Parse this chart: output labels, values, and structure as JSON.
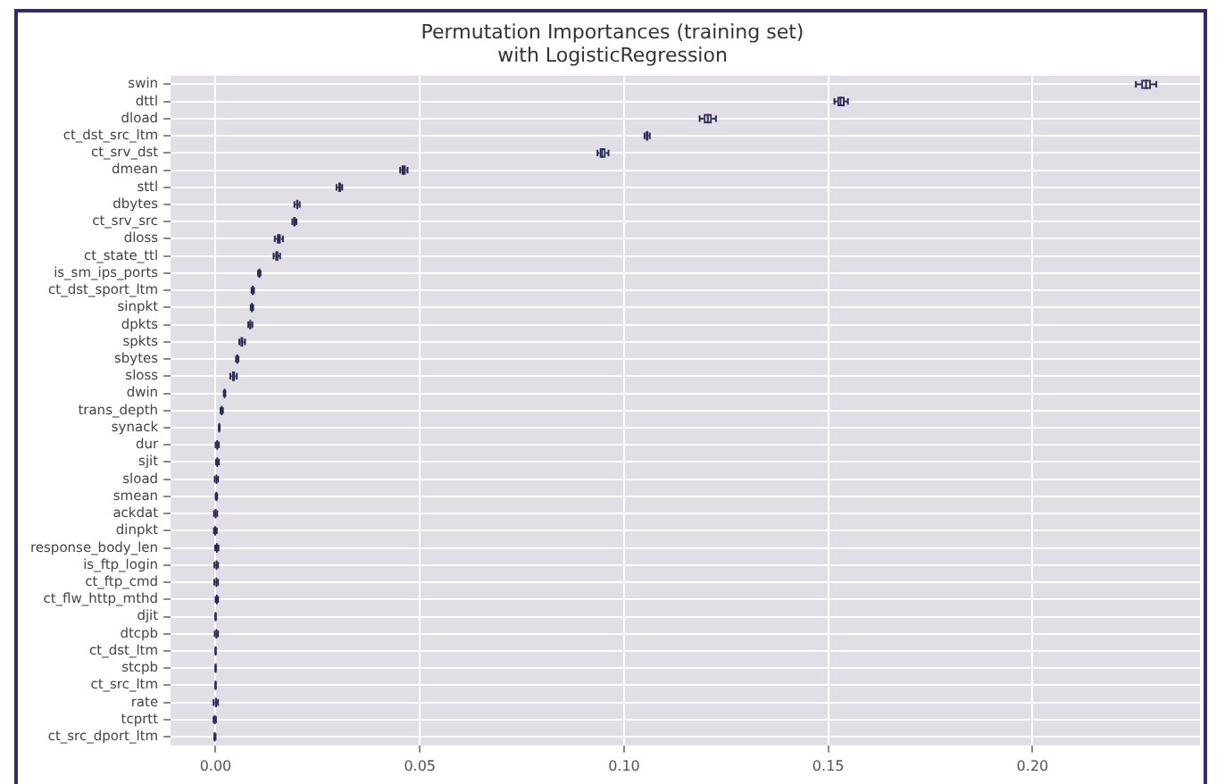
{
  "chart_data": {
    "type": "box",
    "orientation": "horizontal",
    "title": "Permutation Importances (training set)\nwith LogisticRegression",
    "categories": [
      "swin",
      "dttl",
      "dload",
      "ct_dst_src_ltm",
      "ct_srv_dst",
      "dmean",
      "sttl",
      "dbytes",
      "ct_srv_src",
      "dloss",
      "ct_state_ttl",
      "is_sm_ips_ports",
      "ct_dst_sport_ltm",
      "sinpkt",
      "dpkts",
      "spkts",
      "sbytes",
      "sloss",
      "dwin",
      "trans_depth",
      "synack",
      "dur",
      "sjit",
      "sload",
      "smean",
      "ackdat",
      "dinpkt",
      "response_body_len",
      "is_ftp_login",
      "ct_ftp_cmd",
      "ct_flw_http_mthd",
      "djit",
      "dtcpb",
      "ct_dst_ltm",
      "stcpb",
      "ct_src_ltm",
      "rate",
      "tcprtt",
      "ct_src_dport_ltm"
    ],
    "color": "#2b2b5a",
    "boxes": [
      {
        "low": 0.2253,
        "q1": 0.2266,
        "median": 0.2278,
        "q3": 0.229,
        "high": 0.2303
      },
      {
        "low": 0.1515,
        "q1": 0.1522,
        "median": 0.153,
        "q3": 0.154,
        "high": 0.1548
      },
      {
        "low": 0.1185,
        "q1": 0.1195,
        "median": 0.1205,
        "q3": 0.1215,
        "high": 0.1225
      },
      {
        "low": 0.105,
        "q1": 0.1053,
        "median": 0.1057,
        "q3": 0.106,
        "high": 0.1063
      },
      {
        "low": 0.0935,
        "q1": 0.094,
        "median": 0.0946,
        "q3": 0.0955,
        "high": 0.0962
      },
      {
        "low": 0.0452,
        "q1": 0.0455,
        "median": 0.046,
        "q3": 0.0466,
        "high": 0.047
      },
      {
        "low": 0.0296,
        "q1": 0.03,
        "median": 0.0304,
        "q3": 0.0307,
        "high": 0.031
      },
      {
        "low": 0.0193,
        "q1": 0.0197,
        "median": 0.02,
        "q3": 0.0203,
        "high": 0.0206
      },
      {
        "low": 0.0188,
        "q1": 0.019,
        "median": 0.0193,
        "q3": 0.0196,
        "high": 0.0198
      },
      {
        "low": 0.0145,
        "q1": 0.015,
        "median": 0.0155,
        "q3": 0.016,
        "high": 0.0165
      },
      {
        "low": 0.0142,
        "q1": 0.0146,
        "median": 0.015,
        "q3": 0.0154,
        "high": 0.0158
      },
      {
        "low": 0.0104,
        "q1": 0.0106,
        "median": 0.0107,
        "q3": 0.0108,
        "high": 0.011
      },
      {
        "low": 0.0088,
        "q1": 0.009,
        "median": 0.0091,
        "q3": 0.0092,
        "high": 0.0094
      },
      {
        "low": 0.0086,
        "q1": 0.0088,
        "median": 0.0089,
        "q3": 0.009,
        "high": 0.0092
      },
      {
        "low": 0.008,
        "q1": 0.0083,
        "median": 0.0085,
        "q3": 0.0087,
        "high": 0.009
      },
      {
        "low": 0.0058,
        "q1": 0.0061,
        "median": 0.0064,
        "q3": 0.0068,
        "high": 0.0072
      },
      {
        "low": 0.005,
        "q1": 0.0052,
        "median": 0.0053,
        "q3": 0.0054,
        "high": 0.0056
      },
      {
        "low": 0.0036,
        "q1": 0.004,
        "median": 0.0044,
        "q3": 0.0048,
        "high": 0.0052
      },
      {
        "low": 0.002,
        "q1": 0.0021,
        "median": 0.0022,
        "q3": 0.0023,
        "high": 0.0024
      },
      {
        "low": 0.0012,
        "q1": 0.0014,
        "median": 0.0015,
        "q3": 0.0016,
        "high": 0.0018
      },
      {
        "low": 0.0008,
        "q1": 0.0009,
        "median": 0.0009,
        "q3": 0.001,
        "high": 0.001
      },
      {
        "low": 0.0,
        "q1": 0.0002,
        "median": 0.0004,
        "q3": 0.0006,
        "high": 0.0008
      },
      {
        "low": 0.0001,
        "q1": 0.0003,
        "median": 0.0004,
        "q3": 0.0006,
        "high": 0.0008
      },
      {
        "low": -0.0002,
        "q1": 0.0,
        "median": 0.0002,
        "q3": 0.0004,
        "high": 0.0006
      },
      {
        "low": 0.0,
        "q1": 0.0001,
        "median": 0.0002,
        "q3": 0.0003,
        "high": 0.0004
      },
      {
        "low": -0.0004,
        "q1": -0.0002,
        "median": 0.0,
        "q3": 0.0002,
        "high": 0.0004
      },
      {
        "low": -0.0004,
        "q1": -0.0002,
        "median": -0.0001,
        "q3": 0.0001,
        "high": 0.0003
      },
      {
        "low": -0.0001,
        "q1": 0.0001,
        "median": 0.0003,
        "q3": 0.0005,
        "high": 0.0007
      },
      {
        "low": -0.0003,
        "q1": 0.0,
        "median": 0.0002,
        "q3": 0.0004,
        "high": 0.0006
      },
      {
        "low": -0.0003,
        "q1": 0.0,
        "median": 0.0002,
        "q3": 0.0004,
        "high": 0.0006
      },
      {
        "low": 0.0,
        "q1": 0.0001,
        "median": 0.0003,
        "q3": 0.0005,
        "high": 0.0006
      },
      {
        "low": 0.0,
        "q1": 0.0,
        "median": 0.0,
        "q3": 0.0,
        "high": 0.0
      },
      {
        "low": -0.0002,
        "q1": 0.0,
        "median": 0.0002,
        "q3": 0.0004,
        "high": 0.0006
      },
      {
        "low": 0.0,
        "q1": 0.0,
        "median": 0.0,
        "q3": 0.0,
        "high": 0.0
      },
      {
        "low": 0.0,
        "q1": 0.0,
        "median": 0.0,
        "q3": 0.0,
        "high": 0.0
      },
      {
        "low": 0.0,
        "q1": 0.0,
        "median": 0.0,
        "q3": 0.0,
        "high": 0.0
      },
      {
        "low": -0.0005,
        "q1": -0.0002,
        "median": 0.0001,
        "q3": 0.0003,
        "high": 0.0006
      },
      {
        "low": -0.0005,
        "q1": -0.0003,
        "median": -0.0002,
        "q3": 0.0,
        "high": 0.0001
      },
      {
        "low": -0.0003,
        "q1": -0.0002,
        "median": -0.0002,
        "q3": -0.0001,
        "high": 0.0
      }
    ],
    "xlim": [
      -0.011,
      0.241
    ],
    "xticks": [
      {
        "value": 0,
        "label": "0.00"
      },
      {
        "value": 0.05,
        "label": "0.05"
      },
      {
        "value": 0.1,
        "label": "0.10"
      },
      {
        "value": 0.15,
        "label": "0.15"
      },
      {
        "value": 0.2,
        "label": "0.20"
      }
    ],
    "grid": true,
    "legend": false
  }
}
